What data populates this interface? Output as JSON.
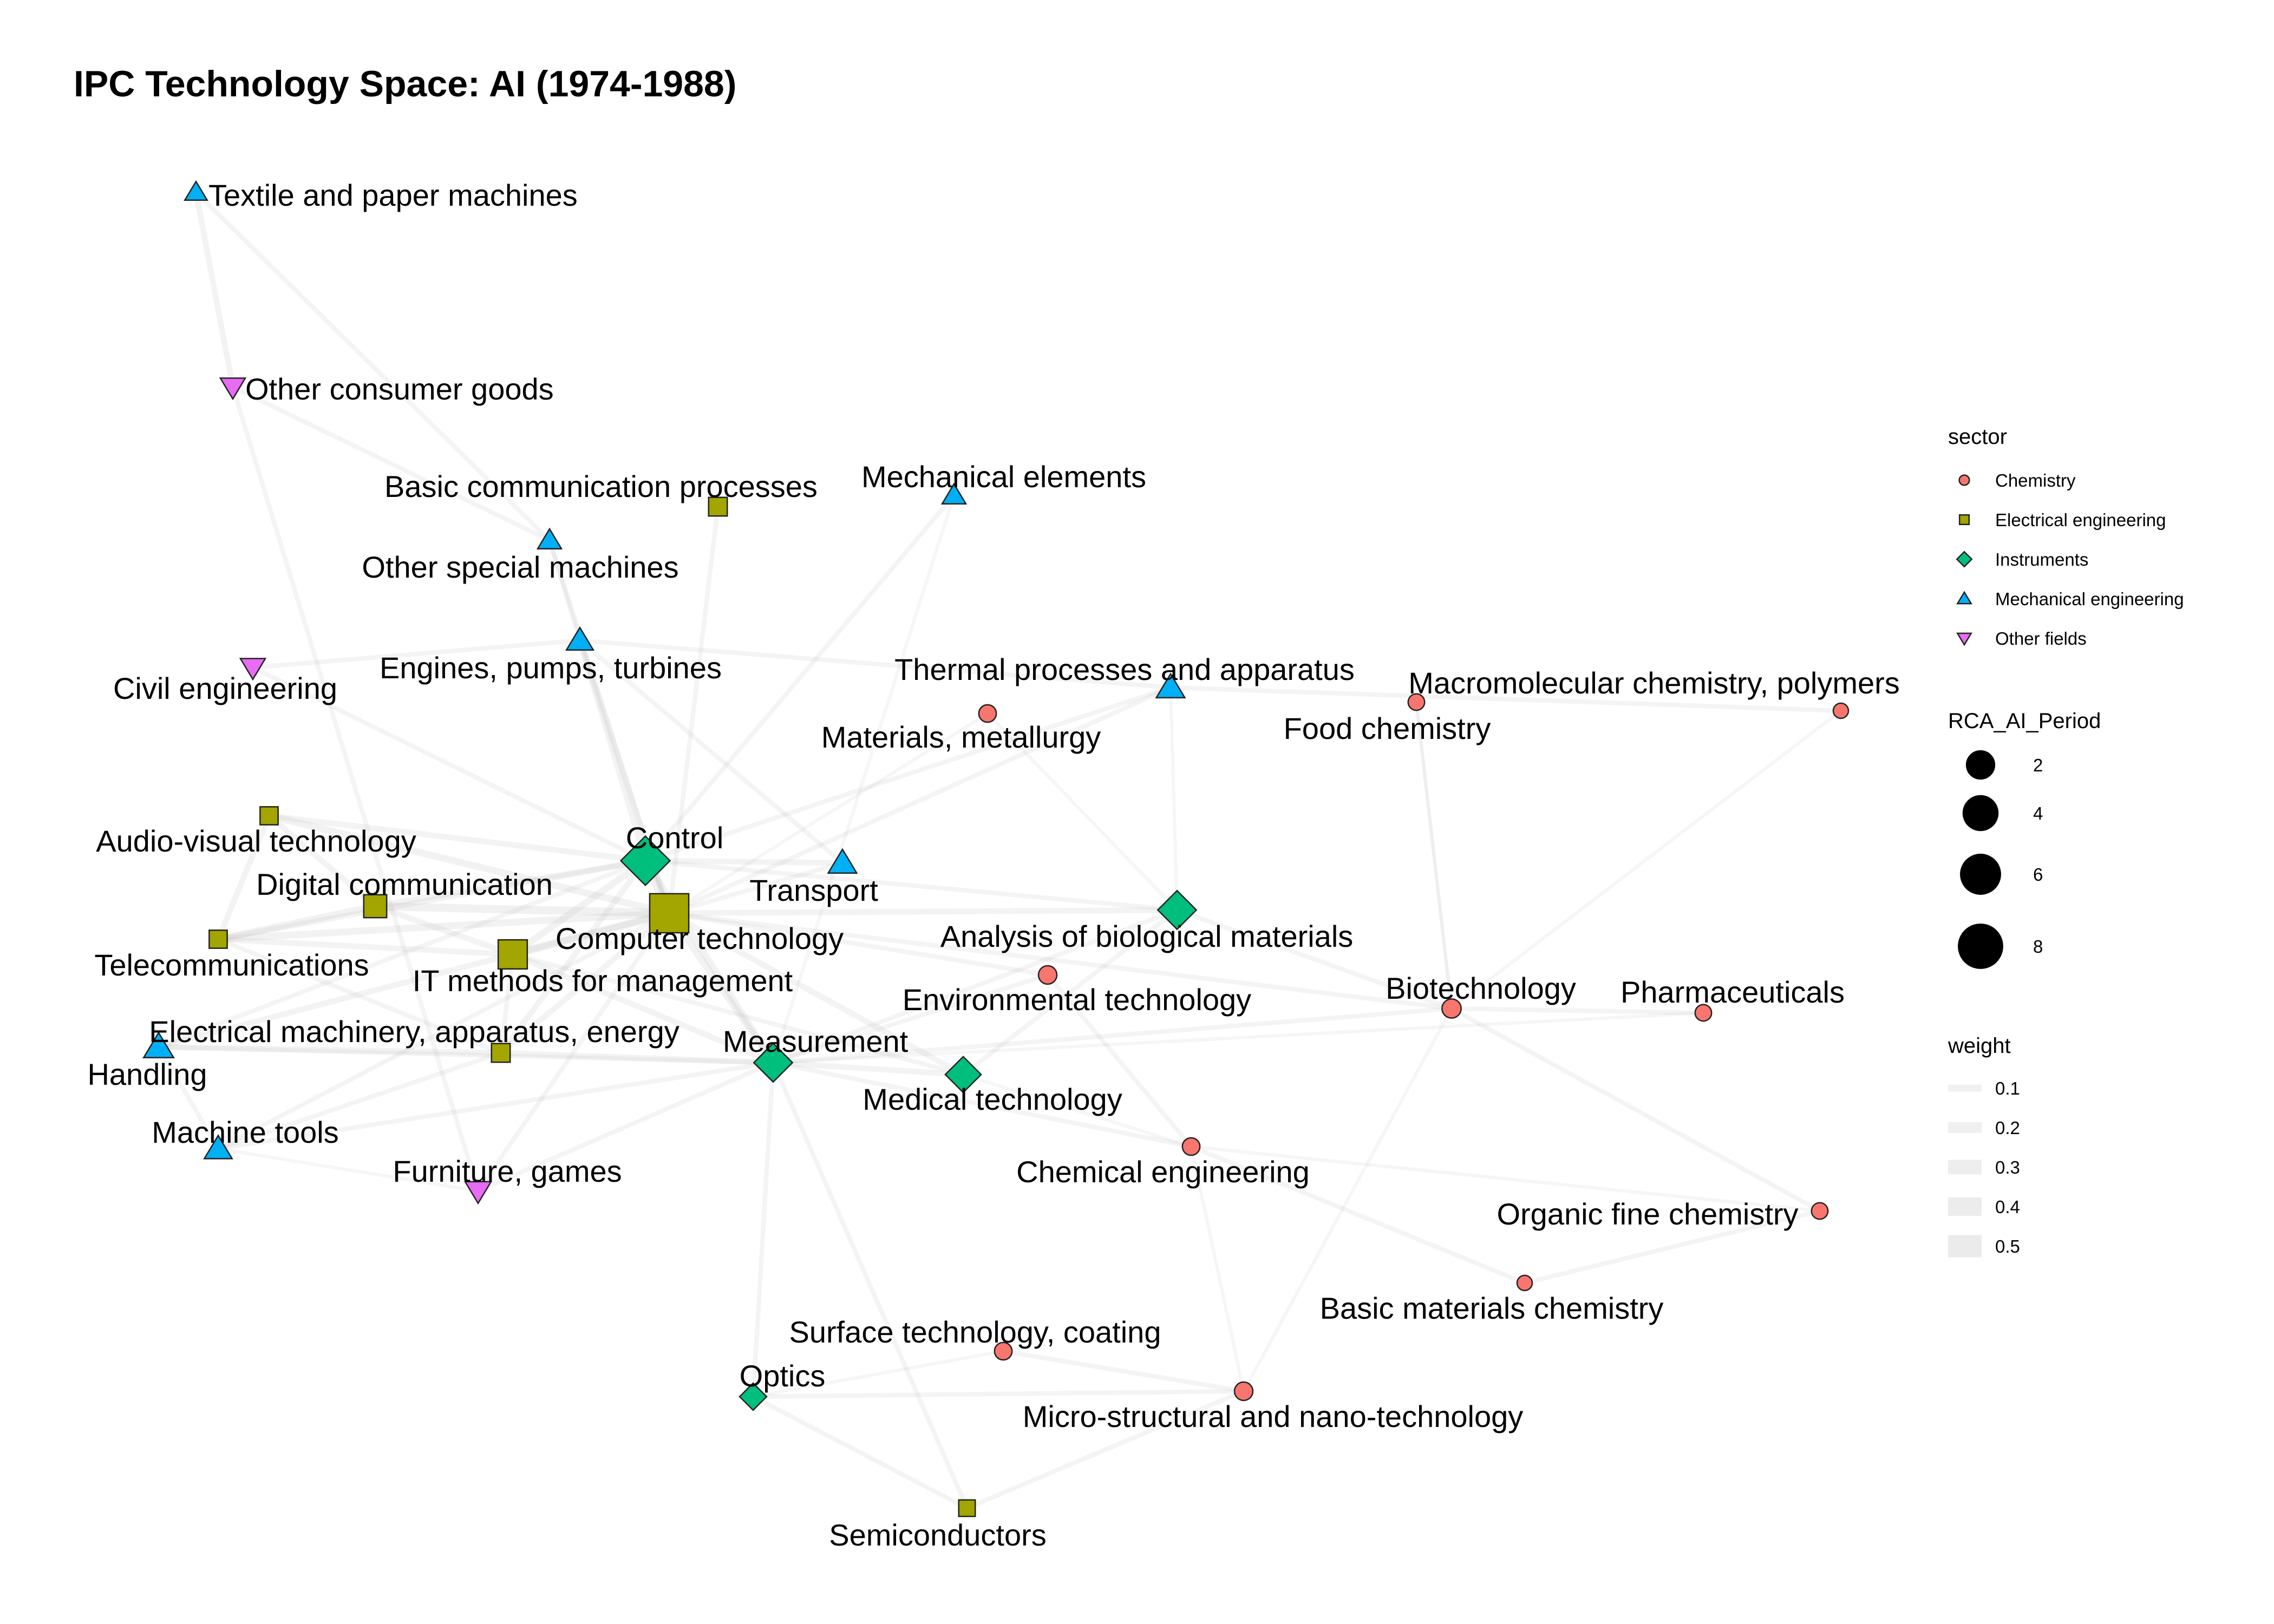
{
  "title": "IPC Technology Space: AI (1974-1988)",
  "sector_colors": {
    "Chemistry": "#F8766D",
    "Electrical engineering": "#A3A500",
    "Instruments": "#00BF7D",
    "Mechanical engineering": "#00B0F6",
    "Other fields": "#E76BF3"
  },
  "sector_shapes": {
    "Chemistry": "circle",
    "Electrical engineering": "square",
    "Instruments": "diamond",
    "Mechanical engineering": "triangle-up",
    "Other fields": "triangle-down"
  },
  "legend": {
    "sector": {
      "title": "sector",
      "entries": [
        "Chemistry",
        "Electrical engineering",
        "Instruments",
        "Mechanical engineering",
        "Other fields"
      ]
    },
    "size": {
      "title": "RCA_AI_Period",
      "entries": [
        2,
        4,
        6,
        8
      ]
    },
    "weight": {
      "title": "weight",
      "entries": [
        0.1,
        0.2,
        0.3,
        0.4,
        0.5
      ]
    }
  },
  "chart_data": {
    "type": "network",
    "nodes": [
      {
        "id": "textile",
        "label": "Textile and paper machines",
        "sector": "Mechanical engineering",
        "rca": 0.2
      },
      {
        "id": "consumer",
        "label": "Other consumer goods",
        "sector": "Other fields",
        "rca": 0.4
      },
      {
        "id": "basiccomm",
        "label": "Basic communication processes",
        "sector": "Electrical engineering",
        "rca": 0.6
      },
      {
        "id": "mechelem",
        "label": "Mechanical elements",
        "sector": "Mechanical engineering",
        "rca": 0.3
      },
      {
        "id": "special",
        "label": "Other special machines",
        "sector": "Mechanical engineering",
        "rca": 0.3
      },
      {
        "id": "civil",
        "label": "Civil engineering",
        "sector": "Other fields",
        "rca": 0.4
      },
      {
        "id": "engines",
        "label": "Engines, pumps, turbines",
        "sector": "Mechanical engineering",
        "rca": 0.6
      },
      {
        "id": "thermal",
        "label": "Thermal processes and apparatus",
        "sector": "Mechanical engineering",
        "rca": 0.8
      },
      {
        "id": "macromol",
        "label": "Macromolecular chemistry, polymers",
        "sector": "Chemistry",
        "rca": 0.1
      },
      {
        "id": "food",
        "label": "Food chemistry",
        "sector": "Chemistry",
        "rca": 0.2
      },
      {
        "id": "materials",
        "label": "Materials, metallurgy",
        "sector": "Chemistry",
        "rca": 0.3
      },
      {
        "id": "audio",
        "label": "Audio-visual technology",
        "sector": "Electrical engineering",
        "rca": 0.5
      },
      {
        "id": "control",
        "label": "Control",
        "sector": "Instruments",
        "rca": 4.5
      },
      {
        "id": "transport",
        "label": "Transport",
        "sector": "Mechanical engineering",
        "rca": 0.8
      },
      {
        "id": "digital",
        "label": "Digital communication",
        "sector": "Electrical engineering",
        "rca": 1.5
      },
      {
        "id": "computer",
        "label": "Computer technology",
        "sector": "Electrical engineering",
        "rca": 8.5
      },
      {
        "id": "analysis",
        "label": "Analysis of biological materials",
        "sector": "Instruments",
        "rca": 2.0
      },
      {
        "id": "telecom",
        "label": "Telecommunications",
        "sector": "Electrical engineering",
        "rca": 0.5
      },
      {
        "id": "itmgmt",
        "label": "IT methods for management",
        "sector": "Electrical engineering",
        "rca": 3.5
      },
      {
        "id": "environ",
        "label": "Environmental technology",
        "sector": "Chemistry",
        "rca": 0.4
      },
      {
        "id": "biotech",
        "label": "Biotechnology",
        "sector": "Chemistry",
        "rca": 0.5
      },
      {
        "id": "pharma",
        "label": "Pharmaceuticals",
        "sector": "Chemistry",
        "rca": 0.2
      },
      {
        "id": "electrical",
        "label": "Electrical machinery, apparatus, energy",
        "sector": "Electrical engineering",
        "rca": 0.6
      },
      {
        "id": "handling",
        "label": "Handling",
        "sector": "Mechanical engineering",
        "rca": 1.0
      },
      {
        "id": "measurement",
        "label": "Measurement",
        "sector": "Instruments",
        "rca": 2.0
      },
      {
        "id": "medical",
        "label": "Medical technology",
        "sector": "Instruments",
        "rca": 1.5
      },
      {
        "id": "machinetools",
        "label": "Machine tools",
        "sector": "Mechanical engineering",
        "rca": 0.7
      },
      {
        "id": "furniture",
        "label": "Furniture, games",
        "sector": "Other fields",
        "rca": 0.5
      },
      {
        "id": "chemeng",
        "label": "Chemical engineering",
        "sector": "Chemistry",
        "rca": 0.3
      },
      {
        "id": "organic",
        "label": "Organic fine chemistry",
        "sector": "Chemistry",
        "rca": 0.2
      },
      {
        "id": "basicmat",
        "label": "Basic materials chemistry",
        "sector": "Chemistry",
        "rca": 0.1
      },
      {
        "id": "surface",
        "label": "Surface technology, coating",
        "sector": "Chemistry",
        "rca": 0.3
      },
      {
        "id": "optics",
        "label": "Optics",
        "sector": "Instruments",
        "rca": 0.4
      },
      {
        "id": "micro",
        "label": "Micro-structural and nano-technology",
        "sector": "Chemistry",
        "rca": 0.4
      },
      {
        "id": "semi",
        "label": "Semiconductors",
        "sector": "Electrical engineering",
        "rca": 0.3
      }
    ],
    "edges": [
      {
        "source": "textile",
        "target": "consumer",
        "weight": 0.3
      },
      {
        "source": "textile",
        "target": "special",
        "weight": 0.2
      },
      {
        "source": "consumer",
        "target": "special",
        "weight": 0.2
      },
      {
        "source": "consumer",
        "target": "furniture",
        "weight": 0.2
      },
      {
        "source": "special",
        "target": "computer",
        "weight": 0.2
      },
      {
        "source": "special",
        "target": "engines",
        "weight": 0.2
      },
      {
        "source": "basiccomm",
        "target": "computer",
        "weight": 0.2
      },
      {
        "source": "mechelem",
        "target": "control",
        "weight": 0.2
      },
      {
        "source": "mechelem",
        "target": "measurement",
        "weight": 0.1
      },
      {
        "source": "civil",
        "target": "engines",
        "weight": 0.2
      },
      {
        "source": "civil",
        "target": "control",
        "weight": 0.2
      },
      {
        "source": "engines",
        "target": "control",
        "weight": 0.3
      },
      {
        "source": "engines",
        "target": "computer",
        "weight": 0.3
      },
      {
        "source": "engines",
        "target": "thermal",
        "weight": 0.2
      },
      {
        "source": "engines",
        "target": "transport",
        "weight": 0.2
      },
      {
        "source": "thermal",
        "target": "macromol",
        "weight": 0.2
      },
      {
        "source": "thermal",
        "target": "control",
        "weight": 0.2
      },
      {
        "source": "thermal",
        "target": "computer",
        "weight": 0.2
      },
      {
        "source": "thermal",
        "target": "analysis",
        "weight": 0.1
      },
      {
        "source": "macromol",
        "target": "biotech",
        "weight": 0.1
      },
      {
        "source": "food",
        "target": "biotech",
        "weight": 0.1
      },
      {
        "source": "materials",
        "target": "computer",
        "weight": 0.1
      },
      {
        "source": "materials",
        "target": "analysis",
        "weight": 0.1
      },
      {
        "source": "audio",
        "target": "control",
        "weight": 0.3
      },
      {
        "source": "audio",
        "target": "computer",
        "weight": 0.4
      },
      {
        "source": "audio",
        "target": "digital",
        "weight": 0.3
      },
      {
        "source": "audio",
        "target": "telecom",
        "weight": 0.3
      },
      {
        "source": "control",
        "target": "computer",
        "weight": 0.5
      },
      {
        "source": "control",
        "target": "itmgmt",
        "weight": 0.4
      },
      {
        "source": "control",
        "target": "measurement",
        "weight": 0.4
      },
      {
        "source": "control",
        "target": "digital",
        "weight": 0.3
      },
      {
        "source": "control",
        "target": "transport",
        "weight": 0.3
      },
      {
        "source": "control",
        "target": "telecom",
        "weight": 0.3
      },
      {
        "source": "control",
        "target": "analysis",
        "weight": 0.2
      },
      {
        "source": "control",
        "target": "handling",
        "weight": 0.2
      },
      {
        "source": "control",
        "target": "electrical",
        "weight": 0.3
      },
      {
        "source": "transport",
        "target": "computer",
        "weight": 0.2
      },
      {
        "source": "digital",
        "target": "computer",
        "weight": 0.5
      },
      {
        "source": "digital",
        "target": "telecom",
        "weight": 0.4
      },
      {
        "source": "digital",
        "target": "itmgmt",
        "weight": 0.3
      },
      {
        "source": "computer",
        "target": "itmgmt",
        "weight": 0.5
      },
      {
        "source": "computer",
        "target": "telecom",
        "weight": 0.4
      },
      {
        "source": "computer",
        "target": "measurement",
        "weight": 0.4
      },
      {
        "source": "computer",
        "target": "analysis",
        "weight": 0.3
      },
      {
        "source": "computer",
        "target": "medical",
        "weight": 0.3
      },
      {
        "source": "computer",
        "target": "electrical",
        "weight": 0.3
      },
      {
        "source": "computer",
        "target": "environ",
        "weight": 0.2
      },
      {
        "source": "computer",
        "target": "biotech",
        "weight": 0.2
      },
      {
        "source": "computer",
        "target": "handling",
        "weight": 0.3
      },
      {
        "source": "computer",
        "target": "furniture",
        "weight": 0.2
      },
      {
        "source": "computer",
        "target": "machinetools",
        "weight": 0.2
      },
      {
        "source": "telecom",
        "target": "itmgmt",
        "weight": 0.3
      },
      {
        "source": "telecom",
        "target": "electrical",
        "weight": 0.2
      },
      {
        "source": "itmgmt",
        "target": "measurement",
        "weight": 0.3
      },
      {
        "source": "itmgmt",
        "target": "medical",
        "weight": 0.2
      },
      {
        "source": "itmgmt",
        "target": "electrical",
        "weight": 0.2
      },
      {
        "source": "analysis",
        "target": "biotech",
        "weight": 0.2
      },
      {
        "source": "analysis",
        "target": "measurement",
        "weight": 0.2
      },
      {
        "source": "analysis",
        "target": "medical",
        "weight": 0.2
      },
      {
        "source": "environ",
        "target": "measurement",
        "weight": 0.2
      },
      {
        "source": "environ",
        "target": "chemeng",
        "weight": 0.2
      },
      {
        "source": "biotech",
        "target": "pharma",
        "weight": 0.2
      },
      {
        "source": "biotech",
        "target": "organic",
        "weight": 0.2
      },
      {
        "source": "biotech",
        "target": "micro",
        "weight": 0.1
      },
      {
        "source": "biotech",
        "target": "measurement",
        "weight": 0.2
      },
      {
        "source": "biotech",
        "target": "food",
        "weight": 0.1
      },
      {
        "source": "electrical",
        "target": "handling",
        "weight": 0.3
      },
      {
        "source": "electrical",
        "target": "measurement",
        "weight": 0.3
      },
      {
        "source": "electrical",
        "target": "machinetools",
        "weight": 0.2
      },
      {
        "source": "handling",
        "target": "machinetools",
        "weight": 0.2
      },
      {
        "source": "handling",
        "target": "measurement",
        "weight": 0.2
      },
      {
        "source": "measurement",
        "target": "medical",
        "weight": 0.3
      },
      {
        "source": "measurement",
        "target": "optics",
        "weight": 0.2
      },
      {
        "source": "measurement",
        "target": "semi",
        "weight": 0.2
      },
      {
        "source": "measurement",
        "target": "chemeng",
        "weight": 0.2
      },
      {
        "source": "measurement",
        "target": "pharma",
        "weight": 0.1
      },
      {
        "source": "measurement",
        "target": "furniture",
        "weight": 0.2
      },
      {
        "source": "measurement",
        "target": "machinetools",
        "weight": 0.2
      },
      {
        "source": "medical",
        "target": "chemeng",
        "weight": 0.1
      },
      {
        "source": "chemeng",
        "target": "basicmat",
        "weight": 0.2
      },
      {
        "source": "chemeng",
        "target": "organic",
        "weight": 0.1
      },
      {
        "source": "chemeng",
        "target": "micro",
        "weight": 0.1
      },
      {
        "source": "basicmat",
        "target": "organic",
        "weight": 0.2
      },
      {
        "source": "surface",
        "target": "micro",
        "weight": 0.2
      },
      {
        "source": "surface",
        "target": "optics",
        "weight": 0.1
      },
      {
        "source": "optics",
        "target": "semi",
        "weight": 0.2
      },
      {
        "source": "optics",
        "target": "micro",
        "weight": 0.2
      },
      {
        "source": "semi",
        "target": "micro",
        "weight": 0.2
      },
      {
        "source": "furniture",
        "target": "machinetools",
        "weight": 0.1
      }
    ]
  }
}
